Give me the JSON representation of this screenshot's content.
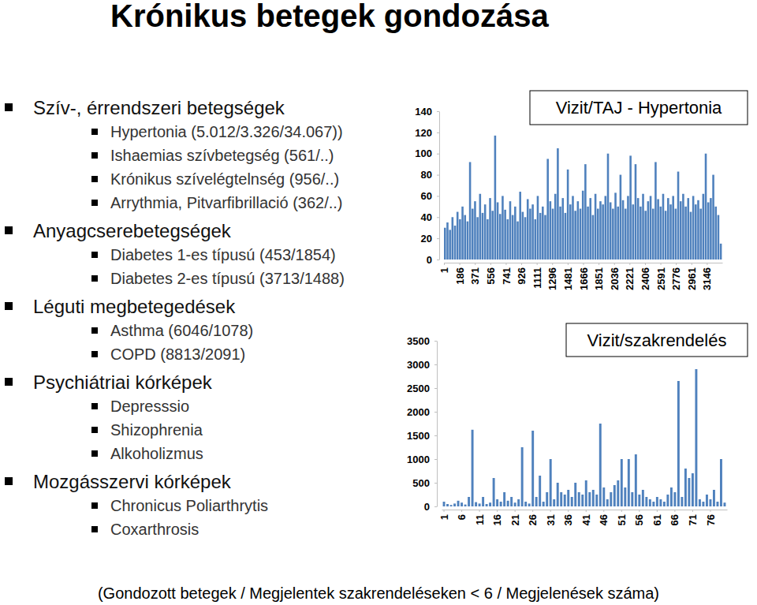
{
  "title": "Krónikus betegek gondozása",
  "bullets": [
    {
      "text": "Szív-, érrendszeri betegségek",
      "items": [
        "Hypertonia (5.012/3.326/34.067))",
        "Ishaemias szívbetegség (561/..)",
        "Krónikus szívelégtelnség (956/..)",
        "Arrythmia, Pitvarfibrillació (362/..)"
      ]
    },
    {
      "text": "Anyagcserebetegségek",
      "items": [
        "Diabetes 1-es típusú (453/1854)",
        "Diabetes 2-es típusú (3713/1488)"
      ]
    },
    {
      "text": "Léguti megbetegedések",
      "items": [
        "Asthma (6046/1078)",
        "COPD (8813/2091)"
      ]
    },
    {
      "text": "Psychiátriai kórképek",
      "items": [
        "Depresssio",
        "Shizophrenia",
        "Alkoholizmus"
      ]
    },
    {
      "text": "Mozgásszervi kórképek",
      "items": [
        "Chronicus Poliarthrytis",
        "Coxarthrosis"
      ]
    }
  ],
  "chart_data": [
    {
      "type": "bar",
      "title": "Vizit/TAJ - Hypertonia",
      "x": [
        1,
        31,
        61,
        91,
        121,
        151,
        181,
        211,
        241,
        271,
        301,
        331,
        361,
        391,
        421,
        451,
        481,
        511,
        541,
        571,
        601,
        631,
        661,
        691,
        721,
        751,
        781,
        811,
        841,
        871,
        901,
        931,
        961,
        991,
        1021,
        1051,
        1081,
        1111,
        1141,
        1171,
        1201,
        1231,
        1261,
        1291,
        1321,
        1351,
        1381,
        1411,
        1441,
        1471,
        1501,
        1531,
        1561,
        1591,
        1621,
        1651,
        1681,
        1711,
        1741,
        1771,
        1801,
        1831,
        1861,
        1891,
        1921,
        1951,
        1981,
        2011,
        2041,
        2071,
        2101,
        2131,
        2161,
        2191,
        2221,
        2251,
        2281,
        2311,
        2341,
        2371,
        2401,
        2431,
        2461,
        2491,
        2521,
        2551,
        2581,
        2611,
        2641,
        2671,
        2701,
        2731,
        2761,
        2791,
        2821,
        2851,
        2881,
        2911,
        2941,
        2971,
        3001,
        3031,
        3061,
        3091,
        3121,
        3151,
        3181,
        3211,
        3241,
        3271,
        3301
      ],
      "values": [
        30,
        35,
        28,
        40,
        32,
        45,
        38,
        50,
        42,
        36,
        92,
        48,
        55,
        40,
        62,
        44,
        52,
        38,
        58,
        46,
        117,
        54,
        43,
        60,
        47,
        38,
        55,
        42,
        50,
        36,
        64,
        45,
        40,
        57,
        48,
        52,
        38,
        60,
        44,
        50,
        42,
        95,
        55,
        48,
        62,
        105,
        50,
        58,
        44,
        85,
        52,
        60,
        46,
        55,
        48,
        65,
        90,
        50,
        58,
        42,
        62,
        48,
        55,
        52,
        60,
        100,
        54,
        48,
        63,
        50,
        80,
        56,
        48,
        60,
        98,
        52,
        90,
        58,
        50,
        62,
        46,
        55,
        60,
        48,
        92,
        57,
        50,
        62,
        46,
        58,
        52,
        60,
        48,
        83,
        55,
        62,
        50,
        58,
        45,
        60,
        52,
        56,
        48,
        62,
        100,
        54,
        58,
        80,
        50,
        42,
        15
      ],
      "color": "#4f81bd",
      "xlim": [
        1,
        3331
      ],
      "xticks": [
        1,
        186,
        371,
        556,
        741,
        926,
        1111,
        1296,
        1481,
        1666,
        1851,
        2036,
        2221,
        2406,
        2591,
        2776,
        2961,
        3146
      ],
      "ylim": [
        0,
        140
      ],
      "yticks": [
        0,
        20,
        40,
        60,
        80,
        100,
        120,
        140
      ]
    },
    {
      "type": "bar",
      "title": "Vizit/szakrendelés",
      "categories": [
        "1",
        null,
        null,
        null,
        null,
        "6",
        null,
        null,
        null,
        null,
        "11",
        null,
        null,
        null,
        null,
        "16",
        null,
        null,
        null,
        null,
        "21",
        null,
        null,
        null,
        null,
        "26",
        null,
        null,
        null,
        null,
        "31",
        null,
        null,
        null,
        null,
        "36",
        null,
        null,
        null,
        null,
        "41",
        null,
        null,
        null,
        null,
        "46",
        null,
        null,
        null,
        null,
        "51",
        null,
        null,
        null,
        null,
        "56",
        null,
        null,
        null,
        null,
        "61",
        null,
        null,
        null,
        null,
        "66",
        null,
        null,
        null,
        null,
        "71",
        null,
        null,
        null,
        null,
        "76",
        null,
        null,
        null,
        null
      ],
      "values": [
        100,
        50,
        30,
        60,
        120,
        80,
        40,
        200,
        1620,
        90,
        60,
        200,
        50,
        80,
        600,
        150,
        100,
        300,
        120,
        200,
        80,
        150,
        1250,
        100,
        60,
        1600,
        200,
        650,
        100,
        300,
        1000,
        150,
        500,
        300,
        250,
        350,
        200,
        500,
        300,
        250,
        550,
        300,
        350,
        250,
        1750,
        400,
        150,
        300,
        450,
        550,
        1000,
        400,
        1000,
        300,
        1100,
        250,
        350,
        200,
        150,
        100,
        200,
        150,
        100,
        250,
        400,
        300,
        2650,
        200,
        800,
        600,
        700,
        2900,
        150,
        100,
        250,
        150,
        350,
        100,
        1000,
        80
      ],
      "color": "#4f81bd",
      "ylim": [
        0,
        3500
      ],
      "yticks": [
        0,
        500,
        1000,
        1500,
        2000,
        2500,
        3000,
        3500
      ]
    }
  ],
  "footer": "(Gondozott betegek / Megjelentek szakrendeléseken < 6 / Megjelenések száma)"
}
